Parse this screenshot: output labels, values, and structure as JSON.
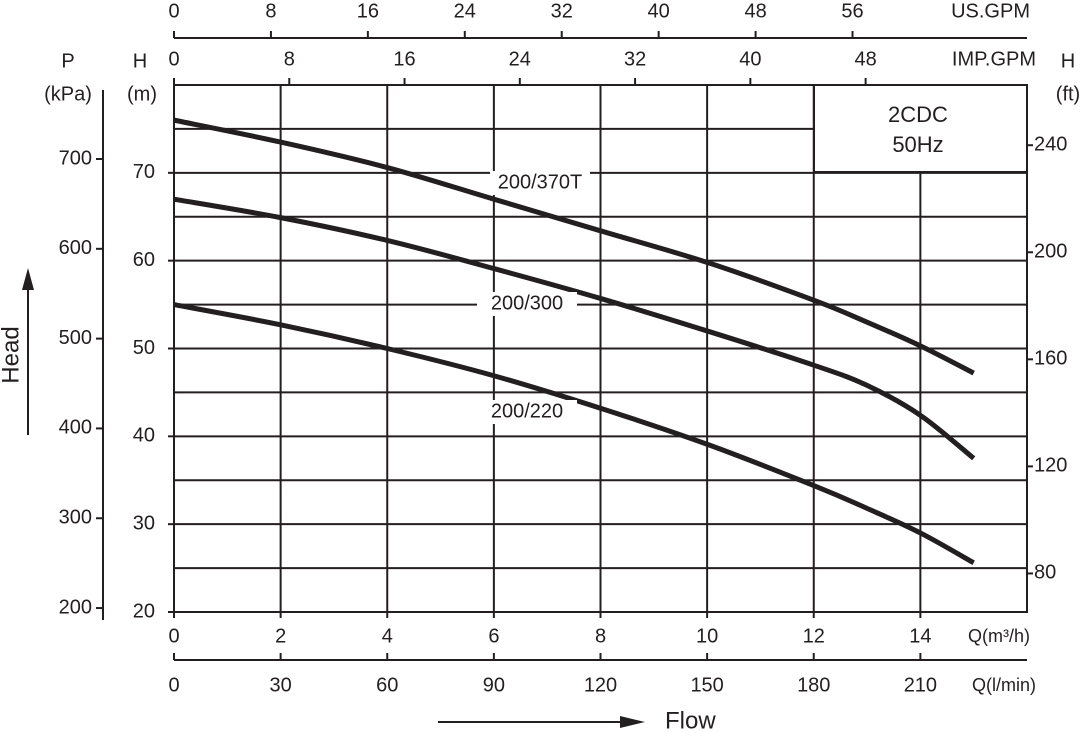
{
  "chart_data": {
    "type": "line",
    "x": [
      0,
      2,
      4,
      6,
      8,
      10,
      12,
      13,
      14,
      15
    ],
    "xlim": [
      0,
      16
    ],
    "xticks": [
      0,
      2,
      4,
      6,
      8,
      10,
      12,
      14
    ],
    "xlabel": "Q(m³/h)",
    "ylim": [
      20,
      80
    ],
    "yticks": [
      20,
      30,
      40,
      50,
      60,
      70
    ],
    "ygrid": [
      25,
      30,
      35,
      40,
      45,
      50,
      55,
      60,
      65,
      70,
      75
    ],
    "ylabel": "H",
    "yunit": "(m)",
    "ytitle": "Head",
    "xtitle": "Flow",
    "grid": true,
    "annotation": [
      "2CDC",
      "50Hz"
    ],
    "series": [
      {
        "name": "200/370T",
        "color": "#231f20",
        "values": [
          76.0,
          73.5,
          70.6,
          67.0,
          63.4,
          59.8,
          55.5,
          53.0,
          50.3,
          47.2
        ]
      },
      {
        "name": "200/300",
        "color": "#231f20",
        "values": [
          67.0,
          64.9,
          62.3,
          59.1,
          55.7,
          52.0,
          48.1,
          45.8,
          42.4,
          37.5
        ]
      },
      {
        "name": "200/220",
        "color": "#231f20",
        "values": [
          55.0,
          52.7,
          50.0,
          46.9,
          43.2,
          39.1,
          34.4,
          31.8,
          29.0,
          25.6
        ]
      }
    ],
    "usgpm": {
      "label": "US.GPM",
      "lim": [
        0,
        70.4
      ],
      "ticks": [
        0,
        8,
        16,
        24,
        32,
        40,
        48,
        56
      ]
    },
    "impgpm": {
      "label": "IMP.GPM",
      "lim": [
        0,
        59.2
      ],
      "ticks": [
        0,
        8,
        16,
        24,
        32,
        40,
        48
      ]
    },
    "lpm": {
      "label": "Q(l/min)",
      "lim": [
        0,
        240
      ],
      "ticks": [
        0,
        30,
        60,
        90,
        120,
        150,
        180,
        210
      ]
    },
    "kpa": {
      "label": "P",
      "unit": "(kPa)",
      "lim": [
        195.6,
        782.4
      ],
      "ticks": [
        200,
        300,
        400,
        500,
        600,
        700
      ]
    },
    "ft": {
      "label": "H",
      "unit": "(ft)",
      "lim": [
        65.6,
        262.5
      ],
      "ticks": [
        80,
        120,
        160,
        200,
        240
      ]
    }
  }
}
